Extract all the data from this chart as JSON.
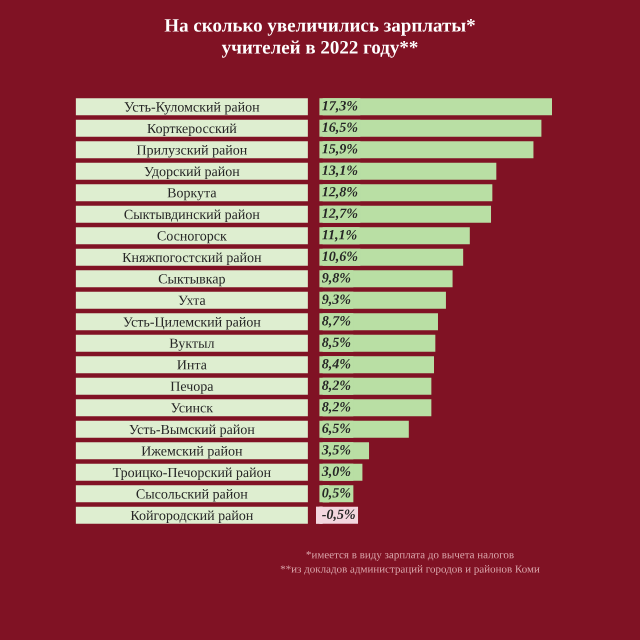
{
  "chart_data": {
    "type": "bar",
    "orientation": "horizontal",
    "title": "На сколько увеличились зарплаты*\nучителей в 2022 году**",
    "categories": [
      "Усть-Куломский район",
      "Корткеросский",
      "Прилузский район",
      "Удорский район",
      "Воркута",
      "Сыктывдинский район",
      "Сосногорск",
      "Княжпогостский район",
      "Сыктывкар",
      "Ухта",
      "Усть-Цилемский район",
      "Вуктыл",
      "Инта",
      "Печора",
      "Усинск",
      "Усть-Вымский район",
      "Ижемский район",
      "Троицко-Печорский район",
      "Сысольский район",
      "Койгородский район"
    ],
    "values": [
      17.3,
      16.5,
      15.9,
      13.1,
      12.8,
      12.7,
      11.1,
      10.6,
      9.8,
      9.3,
      8.7,
      8.5,
      8.4,
      8.2,
      8.2,
      6.5,
      3.5,
      3.0,
      0.5,
      -0.5
    ],
    "value_labels": [
      "17,3%",
      "16,5%",
      "15,9%",
      "13,1%",
      "12,8%",
      "12,7%",
      "11,1%",
      "10,6%",
      "9,8%",
      "9,3%",
      "8,7%",
      "8,5%",
      "8,4%",
      "8,2%",
      "8,2%",
      "6,5%",
      "3,5%",
      "3,0%",
      "0,5%",
      "-0,5%"
    ],
    "colors": [
      "#b9dfa4",
      "#b9dfa4",
      "#b9dfa4",
      "#b9dfa4",
      "#b9dfa4",
      "#b9dfa4",
      "#b9dfa4",
      "#b9dfa4",
      "#b9dfa4",
      "#b9dfa4",
      "#b9dfa4",
      "#b9dfa4",
      "#b9dfa4",
      "#b9dfa4",
      "#b9dfa4",
      "#b9dfa4",
      "#b9dfa4",
      "#b9dfa4",
      "#b9dfa4",
      "#f3d6df"
    ],
    "tick_labels": "y",
    "annotations": [
      "*имеется в виду зарплата до вычета налогов",
      "**из докладов администраций городов и районов Коми"
    ]
  }
}
